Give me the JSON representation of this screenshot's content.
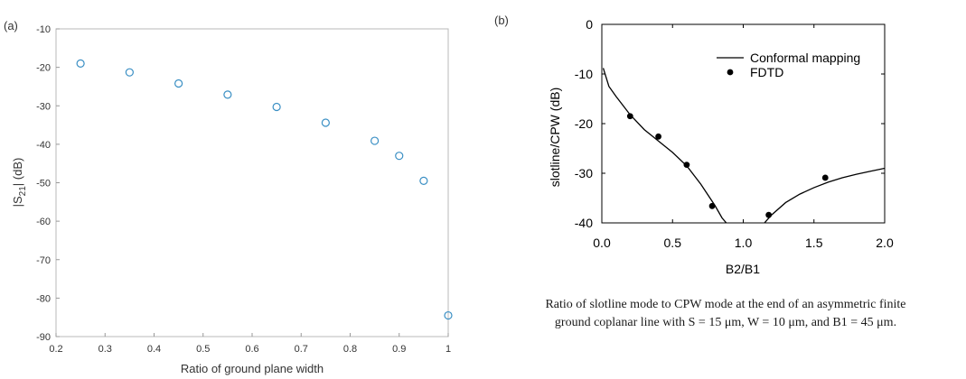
{
  "panels": {
    "a": {
      "label": "(a)"
    },
    "b": {
      "label": "(b)"
    }
  },
  "chart_data": [
    {
      "type": "scatter",
      "title": "",
      "xlabel": "Ratio of ground plane width",
      "ylabel": "|S21| (dB)",
      "ylabel_main": "|S",
      "ylabel_sub": "21",
      "ylabel_tail": "| (dB)",
      "xlim": [
        0.2,
        1.0
      ],
      "ylim": [
        -90,
        -10
      ],
      "xticks": [
        0.2,
        0.3,
        0.4,
        0.5,
        0.6,
        0.7,
        0.8,
        0.9,
        1.0
      ],
      "xtick_labels": [
        "0.2",
        "0.3",
        "0.4",
        "0.5",
        "0.6",
        "0.7",
        "0.8",
        "0.9",
        "1"
      ],
      "yticks": [
        -10,
        -20,
        -30,
        -40,
        -50,
        -60,
        -70,
        -80,
        -90
      ],
      "ytick_labels": [
        "-10",
        "-20",
        "-30",
        "-40",
        "-50",
        "-60",
        "-70",
        "-80",
        "-90"
      ],
      "grid": false,
      "color": "#3a8fc4",
      "series": [
        {
          "x": [
            0.25,
            0.35,
            0.45,
            0.55,
            0.65,
            0.75,
            0.85,
            0.9,
            0.95,
            1.0
          ],
          "y": [
            -19,
            -21.3,
            -24.2,
            -27.1,
            -30.3,
            -34.4,
            -39.1,
            -43,
            -49.5,
            -84.5
          ]
        }
      ]
    },
    {
      "type": "line",
      "title": "",
      "xlabel": "B2/B1",
      "ylabel": "slotline/CPW (dB)",
      "xlim": [
        0,
        2
      ],
      "ylim": [
        -40,
        0
      ],
      "xticks": [
        0,
        0.5,
        1.0,
        1.5,
        2.0
      ],
      "xtick_labels": [
        "0.0",
        "0.5",
        "1.0",
        "1.5",
        "2.0"
      ],
      "yticks": [
        0,
        -10,
        -20,
        -30,
        -40
      ],
      "ytick_labels": [
        "0",
        "-10",
        "-20",
        "-30",
        "-40"
      ],
      "grid": false,
      "legend_position": "top-right",
      "series": [
        {
          "name": "Conformal mapping",
          "style": "line",
          "x": [
            0.01,
            0.05,
            0.1,
            0.2,
            0.3,
            0.4,
            0.5,
            0.6,
            0.7,
            0.8,
            0.85,
            0.88,
            1.15,
            1.2,
            1.3,
            1.4,
            1.5,
            1.6,
            1.7,
            1.8,
            1.9,
            2.0
          ],
          "y": [
            -8.8,
            -12.5,
            -14.5,
            -18.2,
            -21.2,
            -23.5,
            -25.8,
            -28.5,
            -32.2,
            -36.5,
            -39,
            -40,
            -40,
            -38.4,
            -35.9,
            -34.2,
            -32.9,
            -31.8,
            -30.9,
            -30.2,
            -29.6,
            -29
          ]
        },
        {
          "name": "FDTD",
          "style": "markers",
          "x": [
            0.2,
            0.4,
            0.6,
            0.78,
            1.18,
            1.58
          ],
          "y": [
            -18.5,
            -22.6,
            -28.3,
            -36.6,
            -38.4,
            -30.9
          ]
        }
      ]
    }
  ],
  "caption": {
    "line1": "Ratio of slotline mode to CPW mode at the end of an asymmetric finite",
    "line2": "ground coplanar line with S = 15 μm, W = 10 μm, and B1 = 45 μm."
  }
}
